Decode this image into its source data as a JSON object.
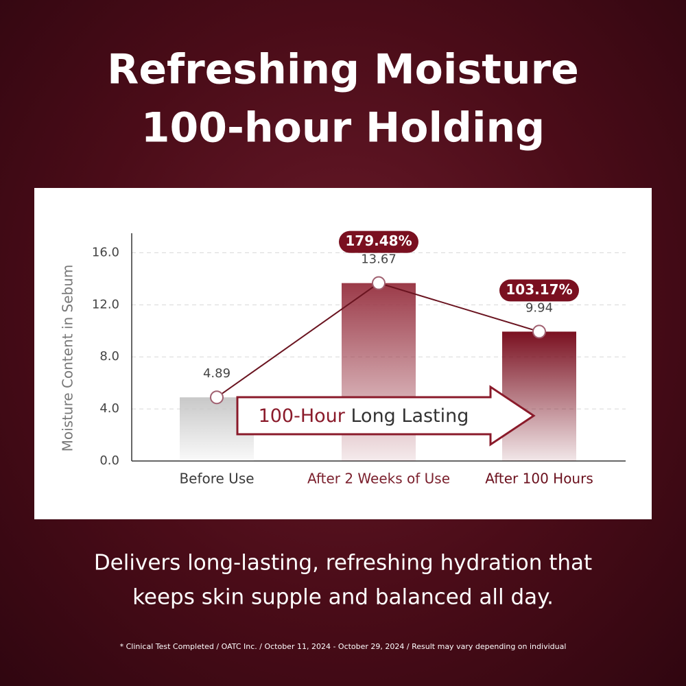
{
  "header": {
    "title": [
      "Refreshing Moisture",
      "100-hour Holding"
    ]
  },
  "chart_data": {
    "type": "bar",
    "y_label": "Moisture Content in Sebum",
    "categories": [
      "Before Use",
      "After 2 Weeks of Use",
      "After 100 Hours"
    ],
    "category_colors": [
      "#3a3a3a",
      "#7a1f2c",
      "#6a0f1c"
    ],
    "values": [
      4.89,
      13.67,
      9.94
    ],
    "colors": [
      "#c8c8c8",
      "#9b3a48",
      "#7a1020"
    ],
    "line_color": "#6a1420",
    "change_labels": [
      "179.48%",
      "103.17%"
    ],
    "badge_color": "#7a1020",
    "arrow_label": [
      "100-Hour",
      "Long Lasting"
    ],
    "ylim": [
      0,
      17.5
    ],
    "yticks": [
      {
        "value": 0,
        "label": "0.0"
      },
      {
        "value": 4,
        "label": "4.0"
      },
      {
        "value": 8,
        "label": "8.0"
      },
      {
        "value": 12,
        "label": "12.0"
      },
      {
        "value": 16,
        "label": "16.0"
      }
    ],
    "grid": true
  },
  "footer": {
    "text": [
      "Delivers long-lasting, refreshing hydration that",
      "keeps skin supple and balanced all day."
    ],
    "note": "* Clinical Test Completed / OATC Inc. /  October 11, 2024 - October 29, 2024 / Result may vary depending on individual"
  }
}
